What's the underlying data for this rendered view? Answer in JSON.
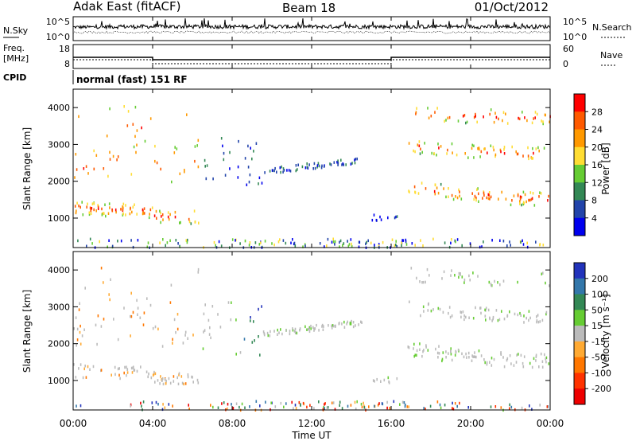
{
  "header": {
    "station": "Adak East (fitACF)",
    "beam": "Beam 18",
    "date": "01/Oct/2012",
    "mode": "normal (fast) 151 RF"
  },
  "strip_labels": {
    "nsky": "N.Sky",
    "nsearch": "N.Search",
    "freq_line1": "Freq.",
    "freq_line2": "[MHz]",
    "nave": "Nave",
    "cpid": "CPID"
  },
  "chart_data": [
    {
      "type": "line",
      "panel": "noise",
      "yticks_left": [
        "10^5",
        "10^0"
      ],
      "yticks_right": [
        "10^5",
        "10^0"
      ]
    },
    {
      "type": "line",
      "panel": "frequency",
      "yticks_left": [
        "18",
        "8"
      ],
      "yticks_right": [
        "60",
        "0"
      ],
      "series": [
        {
          "label": "freq",
          "x": [
            0,
            4,
            4,
            16,
            16,
            24
          ],
          "y": [
            12,
            12,
            10.5,
            10.5,
            12,
            12
          ]
        },
        {
          "label": "nave",
          "x": [
            0,
            4,
            4,
            16,
            16,
            24
          ],
          "y": [
            22,
            22,
            12,
            12,
            22,
            22
          ]
        }
      ],
      "ylim": [
        5,
        20
      ]
    },
    {
      "type": "heatmap",
      "panel": "power",
      "ylabel": "Slant Range [km]",
      "yticks": [
        1000,
        2000,
        3000,
        4000
      ],
      "ylim": [
        200,
        4500
      ],
      "colorbar": {
        "label": "Power [dB]",
        "ticks": [
          "28",
          "24",
          "20",
          "16",
          "12",
          "8",
          "4"
        ],
        "colors": [
          "#ff0000",
          "#ff5a00",
          "#ff9900",
          "#ffdd33",
          "#66cc33",
          "#338855",
          "#2244aa",
          "#0000ee"
        ]
      }
    },
    {
      "type": "heatmap",
      "panel": "velocity",
      "ylabel": "Slant Range [km]",
      "yticks": [
        1000,
        2000,
        3000,
        4000
      ],
      "ylim": [
        200,
        4500
      ],
      "colorbar": {
        "label": "Velocity [m s⁻¹]",
        "ticks": [
          "200",
          "100",
          "50",
          "15",
          "-15",
          "-50",
          "-100",
          "-200"
        ],
        "colors": [
          "#2233bb",
          "#3377aa",
          "#338855",
          "#66cc33",
          "#bbbbbb",
          "#ffaa33",
          "#ff7700",
          "#ff3300",
          "#ee0000"
        ]
      }
    }
  ],
  "xaxis": {
    "label": "Time UT",
    "ticks": [
      "00:00",
      "04:00",
      "08:00",
      "12:00",
      "16:00",
      "20:00",
      "00:00"
    ]
  }
}
